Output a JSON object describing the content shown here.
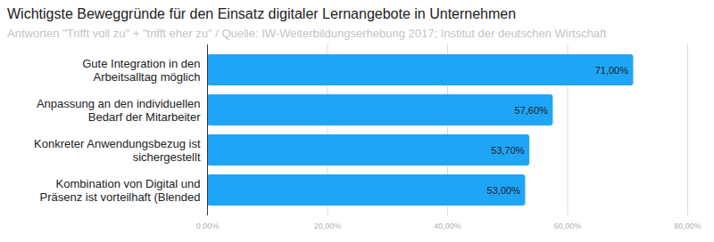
{
  "chart_data": {
    "type": "bar",
    "title": "Wichtigste Beweggründe für den Einsatz digitaler Lernangebote in Unternehmen",
    "subtitle": "Antworten \"Trifft voll zu\" + \"trifft eher zu\" / Quelle: IW-Weiterbildungserhebung 2017; Institut der deutschen Wirtschaft",
    "orientation": "horizontal",
    "categories": [
      "Gute Integration in den\nArbeitsalltag möglich",
      "Anpassung an den individuellen\nBedarf der Mitarbeiter",
      "Konkreter Anwendungsbezug ist\nsichergestellt",
      "Kombination von Digital und\nPräsenz ist vorteilhaft (Blended"
    ],
    "values": [
      71,
      57.6,
      53.7,
      53
    ],
    "value_labels": [
      "71,00%",
      "57,60%",
      "53,70%",
      "53,00%"
    ],
    "data_labels": true,
    "color": "#1ea5f6",
    "xlim": [
      0,
      80
    ],
    "xticks": [
      {
        "value": 0,
        "label": "0,00%"
      },
      {
        "value": 20,
        "label": "20,00%"
      },
      {
        "value": 40,
        "label": "40,00%"
      },
      {
        "value": 60,
        "label": "60,00%"
      },
      {
        "value": 80,
        "label": "80,00%"
      }
    ],
    "grid": true
  }
}
